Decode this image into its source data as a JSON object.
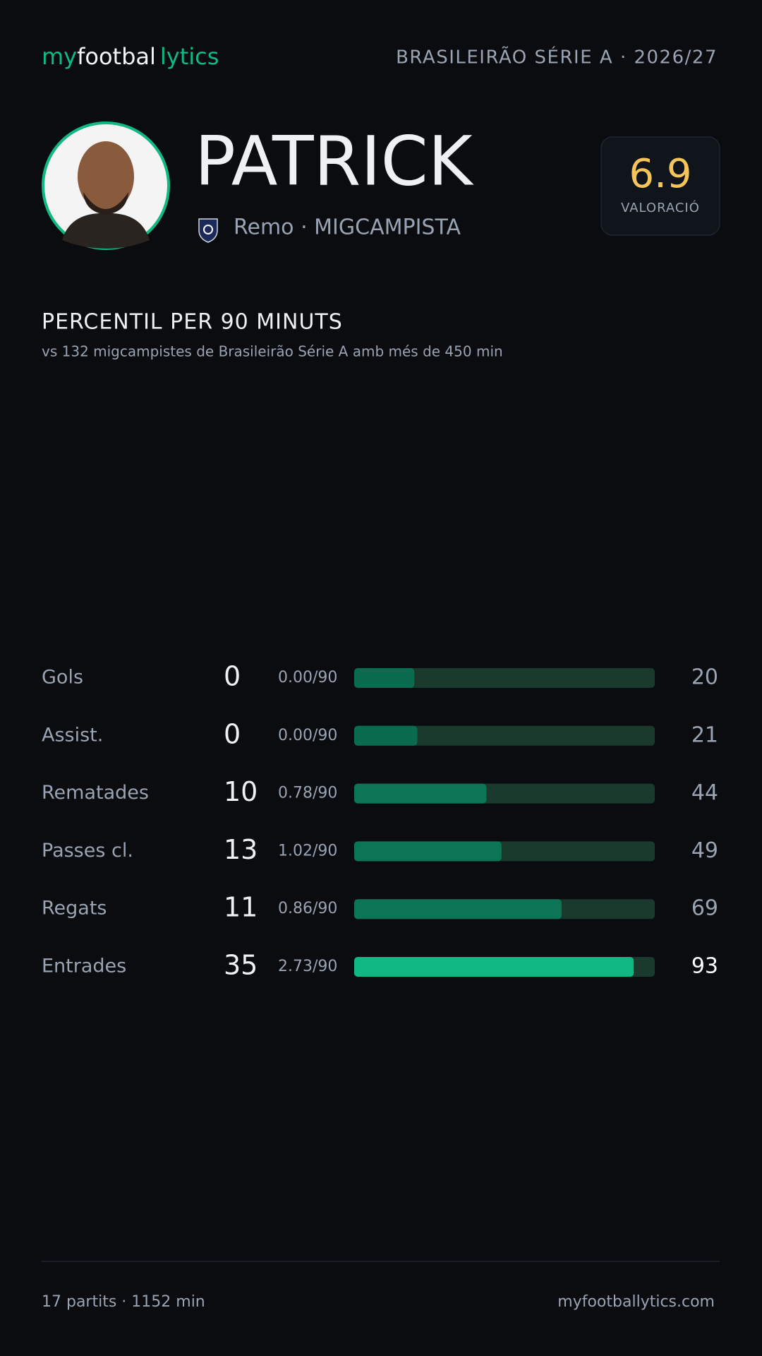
{
  "header": {
    "logo": [
      "my",
      "footbal",
      "lytics"
    ],
    "league": "BRASILEIRÃO SÉRIE A · 2026/27"
  },
  "player": {
    "name": "PATRICK",
    "subtitle": "Remo · MIGCAMPISTA",
    "rating": "6.9",
    "rating_label": "VALORACIÓ"
  },
  "section": {
    "title": "PERCENTIL PER 90 MINUTS",
    "subtitle": "vs 132 migcampistes de Brasileirão Série A amb més de 450 min"
  },
  "stats": {
    "range": [
      0,
      100
    ],
    "track_color": "#1a3a2d",
    "rows": [
      {
        "label": "Gols",
        "total": 0,
        "per90": "0.00/90",
        "percentile": 20,
        "color": "#0a6b4e"
      },
      {
        "label": "Assist.",
        "total": 0,
        "per90": "0.00/90",
        "percentile": 21,
        "color": "#0a6b4e"
      },
      {
        "label": "Rematades",
        "total": 10,
        "per90": "0.78/90",
        "percentile": 44,
        "color": "#0b7556"
      },
      {
        "label": "Passes cl.",
        "total": 13,
        "per90": "1.02/90",
        "percentile": 49,
        "color": "#0b7556"
      },
      {
        "label": "Regats",
        "total": 11,
        "per90": "0.86/90",
        "percentile": 69,
        "color": "#0b7556"
      },
      {
        "label": "Entrades",
        "total": 35,
        "per90": "2.73/90",
        "percentile": 93,
        "color": "#10b981"
      }
    ]
  },
  "footer": {
    "summary": "17 partits · 1152 min",
    "url": "myfootballytics.com"
  }
}
